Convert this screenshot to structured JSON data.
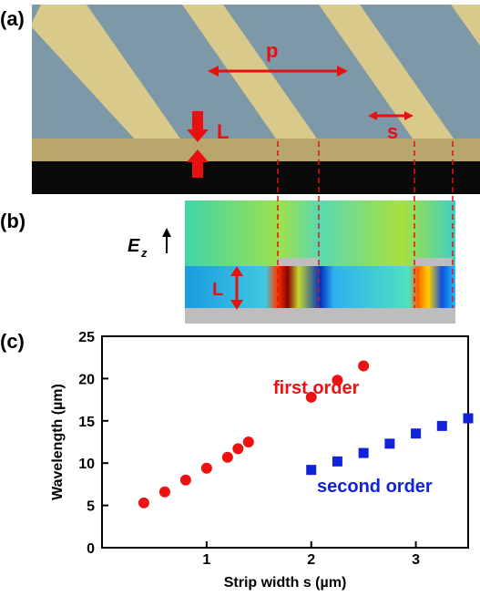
{
  "panels": {
    "a": {
      "label": "(a)",
      "period": "p",
      "strip": "s",
      "thickness": "L"
    },
    "b": {
      "label": "(b)",
      "field": "E",
      "field_sub": "z",
      "thickness": "L"
    },
    "c": {
      "label": "(c)"
    }
  },
  "chart_data": {
    "type": "scatter",
    "xlabel": "Strip width s (µm)",
    "ylabel": "Wavelength (µm)",
    "xlim": [
      0,
      3.5
    ],
    "ylim": [
      0,
      25
    ],
    "xticks": [
      1,
      2,
      3
    ],
    "yticks": [
      0,
      5,
      10,
      15,
      20,
      25
    ],
    "annotations": [
      "first order",
      "second order"
    ],
    "series": [
      {
        "color": "#ee1111",
        "marker": "circle",
        "x": [
          0.4,
          0.6,
          0.8,
          1.0,
          1.2,
          1.3,
          1.4,
          2.0,
          2.25,
          2.5
        ],
        "values": [
          5.3,
          6.6,
          8.0,
          9.4,
          10.7,
          11.7,
          12.5,
          17.8,
          19.8,
          21.5
        ]
      },
      {
        "color": "#1122dd",
        "marker": "square",
        "x": [
          2.0,
          2.25,
          2.5,
          2.75,
          3.0,
          3.25,
          3.5
        ],
        "values": [
          9.2,
          10.2,
          11.2,
          12.3,
          13.5,
          14.4,
          15.3
        ]
      }
    ]
  }
}
